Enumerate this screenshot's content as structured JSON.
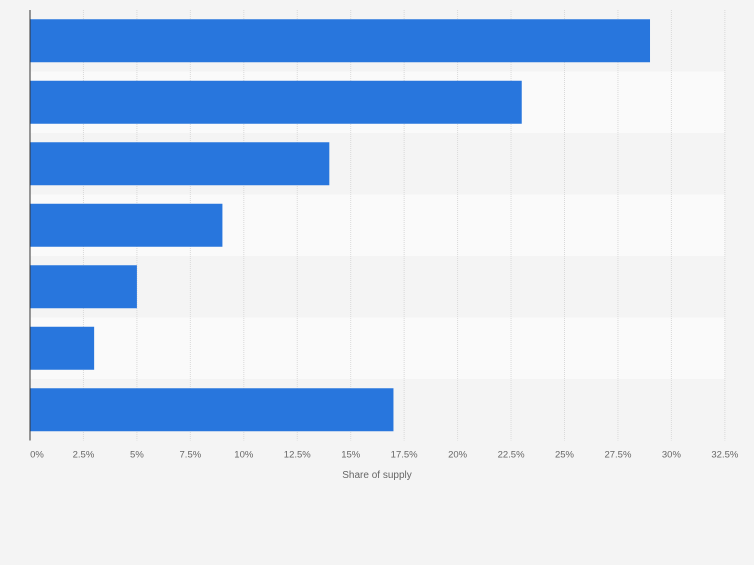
{
  "chart_data": {
    "type": "bar",
    "orientation": "horizontal",
    "categories": [
      "",
      "",
      "",
      "",
      "",
      "",
      ""
    ],
    "values": [
      29,
      23,
      14,
      9,
      5,
      3,
      17
    ],
    "xlabel": "Share of supply",
    "ylabel": "",
    "xlim": [
      0,
      32.5
    ],
    "x_ticks": [
      "0%",
      "2.5%",
      "5%",
      "7.5%",
      "10%",
      "12.5%",
      "15%",
      "17.5%",
      "20%",
      "22.5%",
      "25%",
      "27.5%",
      "30%",
      "32.5%"
    ],
    "grid": true,
    "legend": "none",
    "colors": {
      "bar": "#2876dd",
      "background": "#f4f4f4",
      "grid": "#d9d9d9",
      "axis": "#333333",
      "tick_text": "#666666"
    }
  }
}
